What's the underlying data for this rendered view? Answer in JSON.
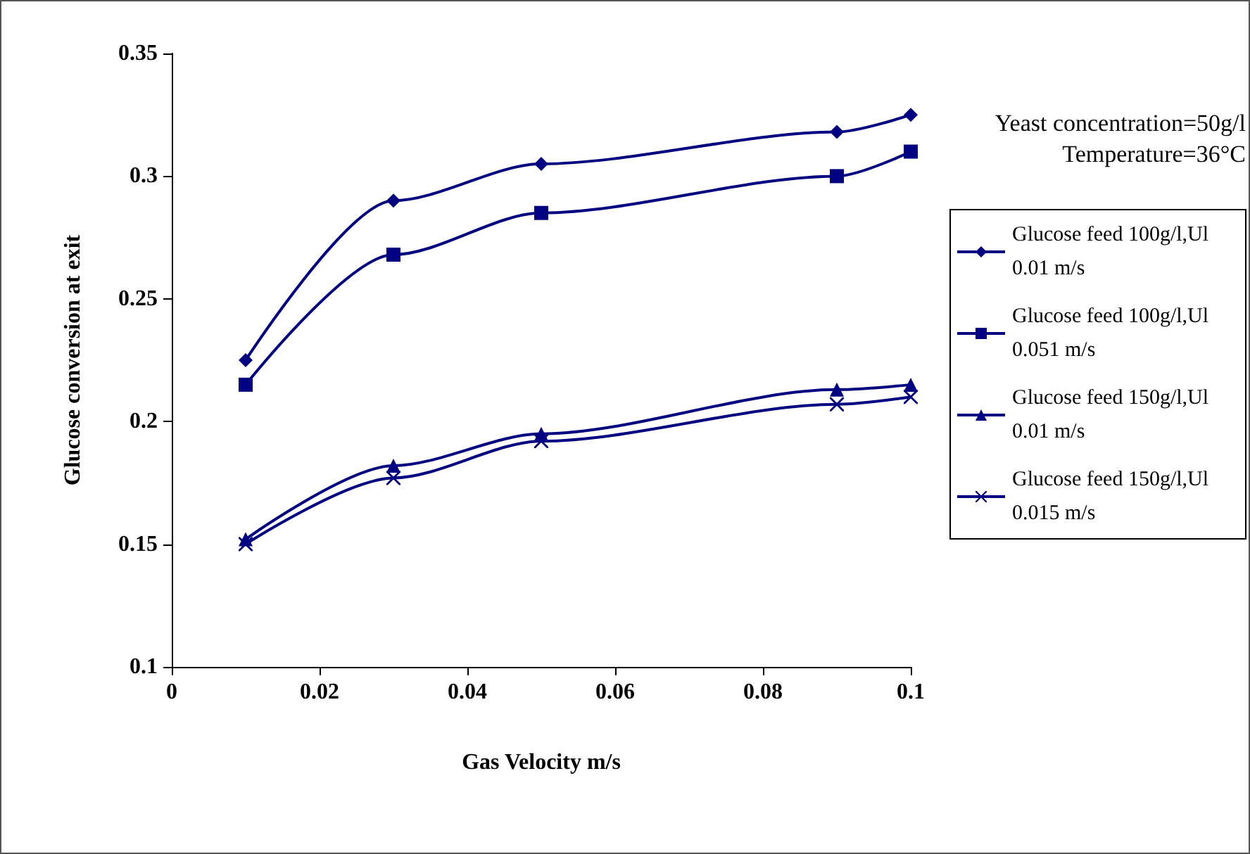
{
  "chart_data": {
    "type": "line",
    "xlabel": "Gas Velocity m/s",
    "ylabel": "Glucose conversion at exit",
    "x": [
      0.01,
      0.03,
      0.05,
      0.09,
      0.1
    ],
    "series": [
      {
        "name": "Glucose feed 100g/l,Ul 0.01 m/s",
        "color": "#000080",
        "marker": "diamond",
        "values": [
          0.225,
          0.29,
          0.305,
          0.318,
          0.325
        ]
      },
      {
        "name": "Glucose feed 100g/l,Ul 0.051 m/s",
        "color": "#000080",
        "marker": "square",
        "values": [
          0.215,
          0.268,
          0.285,
          0.3,
          0.31
        ]
      },
      {
        "name": "Glucose feed 150g/l,Ul 0.01 m/s",
        "color": "#000080",
        "marker": "triangle",
        "values": [
          0.152,
          0.182,
          0.195,
          0.213,
          0.215
        ]
      },
      {
        "name": "Glucose feed 150g/l,Ul 0.015 m/s",
        "color": "#000080",
        "marker": "cross",
        "values": [
          0.15,
          0.177,
          0.192,
          0.207,
          0.21
        ]
      }
    ],
    "annotations": [
      "Yeast concentration=50g/l",
      "Temperature=36°C"
    ],
    "xlim": [
      0,
      0.1
    ],
    "xticks": [
      0,
      0.02,
      0.04,
      0.06,
      0.08,
      0.1
    ],
    "ylim": [
      0.1,
      0.35
    ],
    "yticks": [
      0.1,
      0.15,
      0.2,
      0.25,
      0.3,
      0.35
    ],
    "grid": false,
    "legend": "right",
    "line_style": "solid"
  }
}
